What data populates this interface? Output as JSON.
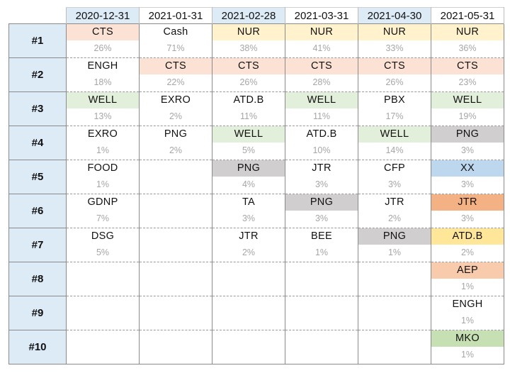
{
  "dates": [
    "2020-12-31",
    "2021-01-31",
    "2021-02-28",
    "2021-03-31",
    "2021-04-30",
    "2021-05-31"
  ],
  "shaded_header_columns": [
    0,
    2,
    4
  ],
  "colors": {
    "CTS": "#fbe2d5",
    "NUR": "#fff2cc",
    "WELL": "#e2efda",
    "PNG": "#d0cece",
    "XX": "#bdd7ee",
    "JTR": "#f4b183",
    "ATD.B": "#ffe699",
    "AEP": "#f8cbad",
    "MKO": "#c6e0b4",
    "header_shade": "#ddebf7",
    "rank_shade": "#ddebf7",
    "percent_text": "#a6a6a6"
  },
  "rows": [
    {
      "rank": "#1",
      "cells": [
        {
          "ticker": "CTS",
          "pct": "26%",
          "color": "CTS"
        },
        {
          "ticker": "Cash",
          "pct": "71%",
          "color": ""
        },
        {
          "ticker": "NUR",
          "pct": "38%",
          "color": "NUR"
        },
        {
          "ticker": "NUR",
          "pct": "41%",
          "color": "NUR"
        },
        {
          "ticker": "NUR",
          "pct": "33%",
          "color": "NUR"
        },
        {
          "ticker": "NUR",
          "pct": "36%",
          "color": "NUR"
        }
      ]
    },
    {
      "rank": "#2",
      "cells": [
        {
          "ticker": "ENGH",
          "pct": "18%",
          "color": ""
        },
        {
          "ticker": "CTS",
          "pct": "22%",
          "color": "CTS"
        },
        {
          "ticker": "CTS",
          "pct": "26%",
          "color": "CTS"
        },
        {
          "ticker": "CTS",
          "pct": "28%",
          "color": "CTS"
        },
        {
          "ticker": "CTS",
          "pct": "26%",
          "color": "CTS"
        },
        {
          "ticker": "CTS",
          "pct": "23%",
          "color": "CTS"
        }
      ]
    },
    {
      "rank": "#3",
      "cells": [
        {
          "ticker": "WELL",
          "pct": "13%",
          "color": "WELL"
        },
        {
          "ticker": "EXRO",
          "pct": "2%",
          "color": ""
        },
        {
          "ticker": "ATD.B",
          "pct": "11%",
          "color": ""
        },
        {
          "ticker": "WELL",
          "pct": "11%",
          "color": "WELL"
        },
        {
          "ticker": "PBX",
          "pct": "17%",
          "color": ""
        },
        {
          "ticker": "WELL",
          "pct": "19%",
          "color": "WELL"
        }
      ]
    },
    {
      "rank": "#4",
      "cells": [
        {
          "ticker": "EXRO",
          "pct": "1%",
          "color": ""
        },
        {
          "ticker": "PNG",
          "pct": "2%",
          "color": ""
        },
        {
          "ticker": "WELL",
          "pct": "5%",
          "color": "WELL"
        },
        {
          "ticker": "ATD.B",
          "pct": "10%",
          "color": ""
        },
        {
          "ticker": "WELL",
          "pct": "14%",
          "color": "WELL"
        },
        {
          "ticker": "PNG",
          "pct": "3%",
          "color": "PNG"
        }
      ]
    },
    {
      "rank": "#5",
      "cells": [
        {
          "ticker": "FOOD",
          "pct": "1%",
          "color": ""
        },
        {
          "ticker": "",
          "pct": "",
          "color": ""
        },
        {
          "ticker": "PNG",
          "pct": "4%",
          "color": "PNG"
        },
        {
          "ticker": "JTR",
          "pct": "3%",
          "color": ""
        },
        {
          "ticker": "CFP",
          "pct": "3%",
          "color": ""
        },
        {
          "ticker": "XX",
          "pct": "3%",
          "color": "XX"
        }
      ]
    },
    {
      "rank": "#6",
      "cells": [
        {
          "ticker": "GDNP",
          "pct": "7%",
          "color": ""
        },
        {
          "ticker": "",
          "pct": "",
          "color": ""
        },
        {
          "ticker": "TA",
          "pct": "3%",
          "color": ""
        },
        {
          "ticker": "PNG",
          "pct": "3%",
          "color": "PNG"
        },
        {
          "ticker": "JTR",
          "pct": "2%",
          "color": ""
        },
        {
          "ticker": "JTR",
          "pct": "3%",
          "color": "JTR"
        }
      ]
    },
    {
      "rank": "#7",
      "cells": [
        {
          "ticker": "DSG",
          "pct": "5%",
          "color": ""
        },
        {
          "ticker": "",
          "pct": "",
          "color": ""
        },
        {
          "ticker": "JTR",
          "pct": "2%",
          "color": ""
        },
        {
          "ticker": "BEE",
          "pct": "1%",
          "color": ""
        },
        {
          "ticker": "PNG",
          "pct": "1%",
          "color": "PNG"
        },
        {
          "ticker": "ATD.B",
          "pct": "2%",
          "color": "ATD.B"
        }
      ]
    },
    {
      "rank": "#8",
      "cells": [
        {
          "ticker": "",
          "pct": "",
          "color": ""
        },
        {
          "ticker": "",
          "pct": "",
          "color": ""
        },
        {
          "ticker": "",
          "pct": "",
          "color": ""
        },
        {
          "ticker": "",
          "pct": "",
          "color": ""
        },
        {
          "ticker": "",
          "pct": "",
          "color": ""
        },
        {
          "ticker": "AEP",
          "pct": "1%",
          "color": "AEP"
        }
      ]
    },
    {
      "rank": "#9",
      "cells": [
        {
          "ticker": "",
          "pct": "",
          "color": ""
        },
        {
          "ticker": "",
          "pct": "",
          "color": ""
        },
        {
          "ticker": "",
          "pct": "",
          "color": ""
        },
        {
          "ticker": "",
          "pct": "",
          "color": ""
        },
        {
          "ticker": "",
          "pct": "",
          "color": ""
        },
        {
          "ticker": "ENGH",
          "pct": "1%",
          "color": ""
        }
      ]
    },
    {
      "rank": "#10",
      "cells": [
        {
          "ticker": "",
          "pct": "",
          "color": ""
        },
        {
          "ticker": "",
          "pct": "",
          "color": ""
        },
        {
          "ticker": "",
          "pct": "",
          "color": ""
        },
        {
          "ticker": "",
          "pct": "",
          "color": ""
        },
        {
          "ticker": "",
          "pct": "",
          "color": ""
        },
        {
          "ticker": "MKO",
          "pct": "1%",
          "color": "MKO"
        }
      ]
    }
  ]
}
